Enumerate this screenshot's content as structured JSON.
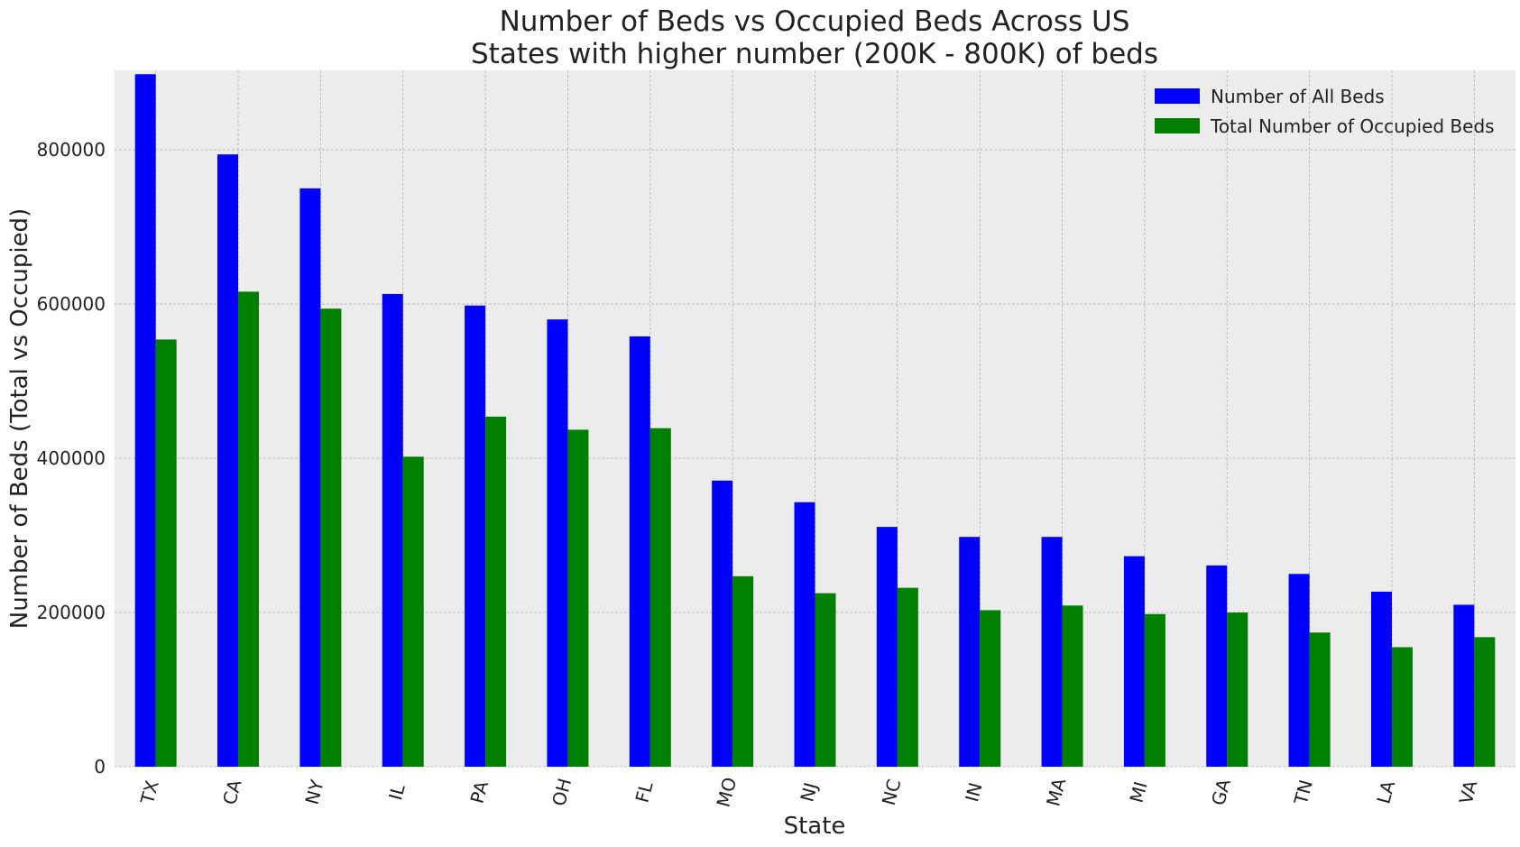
{
  "chart_data": {
    "type": "bar",
    "title": "Number of Beds vs Occupied Beds Across US",
    "subtitle": "States with higher number (200K - 800K) of beds",
    "xlabel": "State",
    "ylabel": "Number of Beds (Total vs Occupied)",
    "categories": [
      "TX",
      "CA",
      "NY",
      "IL",
      "PA",
      "OH",
      "FL",
      "MO",
      "NJ",
      "NC",
      "IN",
      "MA",
      "MI",
      "GA",
      "TN",
      "LA",
      "VA"
    ],
    "series": [
      {
        "name": "Number of All Beds",
        "color": "#0000ff",
        "values": [
          898000,
          794000,
          750000,
          613000,
          598000,
          580000,
          558000,
          371000,
          343000,
          311000,
          298000,
          298000,
          273000,
          261000,
          250000,
          227000,
          210000
        ]
      },
      {
        "name": "Total Number of Occupied Beds",
        "color": "#008000",
        "values": [
          554000,
          616000,
          594000,
          402000,
          454000,
          437000,
          439000,
          247000,
          225000,
          232000,
          203000,
          209000,
          198000,
          200000,
          174000,
          155000,
          168000
        ]
      }
    ],
    "ylim": [
      0,
      903000
    ],
    "yticks": [
      "0",
      "200000",
      "400000",
      "600000",
      "800000"
    ],
    "ytick_values": [
      0,
      200000,
      400000,
      600000,
      800000
    ],
    "grid": true,
    "legend_position": "top-right",
    "background": "#ececec",
    "xtick_rotation": "rotated"
  }
}
